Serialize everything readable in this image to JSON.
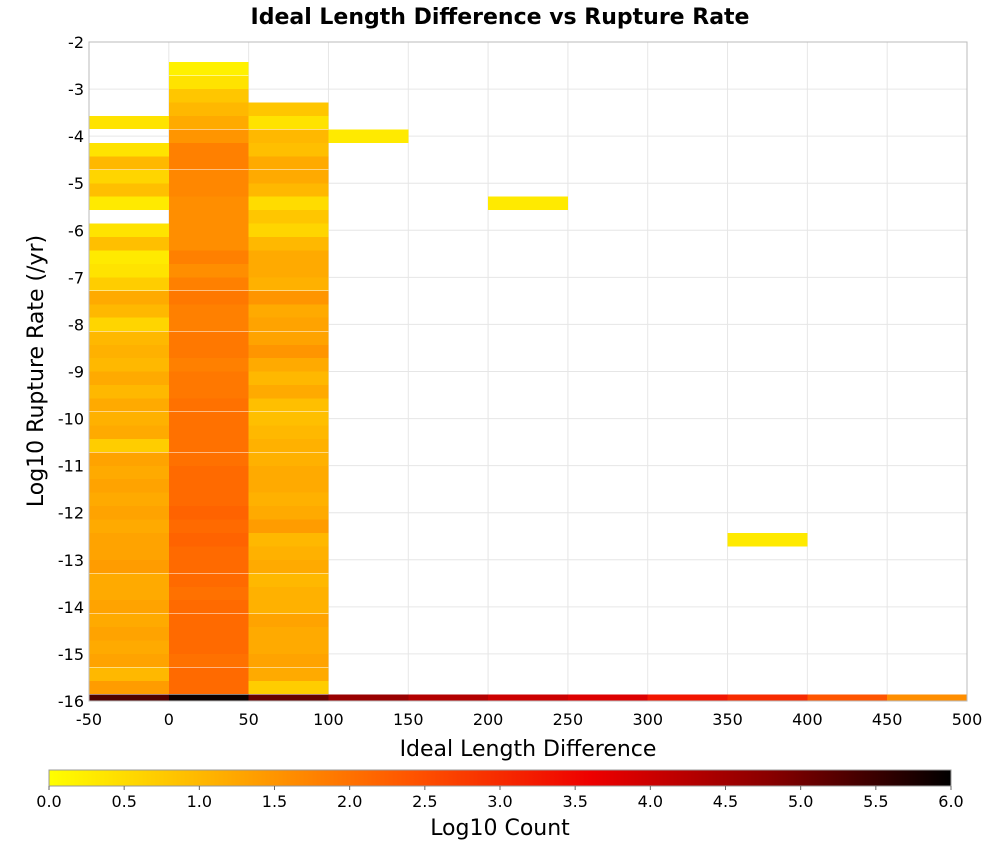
{
  "chart_data": {
    "type": "heatmap",
    "title": "Ideal Length Difference vs Rupture Rate",
    "xlabel": "Ideal Length Difference",
    "ylabel": "Log10 Rupture Rate (/yr)",
    "xlim": [
      -50,
      500
    ],
    "ylim": [
      -16,
      -2
    ],
    "x_ticks": [
      "-50",
      "0",
      "50",
      "100",
      "150",
      "200",
      "250",
      "300",
      "350",
      "400",
      "450",
      "500"
    ],
    "y_ticks": [
      "-2",
      "-3",
      "-4",
      "-5",
      "-6",
      "-7",
      "-8",
      "-9",
      "-10",
      "-11",
      "-12",
      "-13",
      "-14",
      "-15",
      "-16"
    ],
    "x_bin_width": 50,
    "y_bin_height": 0.286,
    "grid": true,
    "colorbar": {
      "label": "Log10 Count",
      "range": [
        0,
        6
      ],
      "ticks": [
        "0.0",
        "0.5",
        "1.0",
        "1.5",
        "2.0",
        "2.5",
        "3.0",
        "3.5",
        "4.0",
        "4.5",
        "5.0",
        "5.5",
        "6.0"
      ],
      "colors": [
        "#ffff00",
        "#ffaa00",
        "#ff5500",
        "#ee0000",
        "#880000",
        "#000000"
      ]
    },
    "columns": [
      {
        "x_start": -50,
        "cells": [
          [
            -16.0,
            5.3
          ],
          [
            -15.71,
            1.4
          ],
          [
            -15.43,
            1.0
          ],
          [
            -15.14,
            1.3
          ],
          [
            -14.86,
            1.2
          ],
          [
            -14.57,
            1.3
          ],
          [
            -14.29,
            1.2
          ],
          [
            -14.0,
            1.3
          ],
          [
            -13.71,
            1.2
          ],
          [
            -13.43,
            1.2
          ],
          [
            -13.14,
            1.4
          ],
          [
            -12.86,
            1.3
          ],
          [
            -12.57,
            1.3
          ],
          [
            -12.29,
            1.2
          ],
          [
            -12.0,
            1.3
          ],
          [
            -11.71,
            1.2
          ],
          [
            -11.43,
            1.3
          ],
          [
            -11.14,
            1.2
          ],
          [
            -10.86,
            1.3
          ],
          [
            -10.57,
            0.7
          ],
          [
            -10.29,
            1.2
          ],
          [
            -10.0,
            1.1
          ],
          [
            -9.71,
            1.2
          ],
          [
            -9.43,
            1.0
          ],
          [
            -9.14,
            1.2
          ],
          [
            -8.86,
            1.0
          ],
          [
            -8.57,
            1.1
          ],
          [
            -8.29,
            1.0
          ],
          [
            -8.0,
            0.6
          ],
          [
            -7.71,
            1.0
          ],
          [
            -7.43,
            1.2
          ],
          [
            -7.14,
            0.7
          ],
          [
            -6.86,
            0.4
          ],
          [
            -6.57,
            0.3
          ],
          [
            -6.29,
            0.9
          ],
          [
            -6.0,
            0.4
          ],
          [
            -5.43,
            0.3
          ],
          [
            -5.14,
            0.9
          ],
          [
            -4.86,
            0.6
          ],
          [
            -4.57,
            1.0
          ],
          [
            -4.29,
            0.4
          ],
          [
            -3.71,
            0.4
          ]
        ]
      },
      {
        "x_start": 0,
        "cells": [
          [
            -16.0,
            5.9
          ],
          [
            -15.71,
            2.1
          ],
          [
            -15.43,
            2.1
          ],
          [
            -15.14,
            2.0
          ],
          [
            -14.86,
            2.1
          ],
          [
            -14.57,
            2.1
          ],
          [
            -14.29,
            2.1
          ],
          [
            -14.0,
            2.1
          ],
          [
            -13.71,
            2.0
          ],
          [
            -13.43,
            2.1
          ],
          [
            -13.14,
            2.1
          ],
          [
            -12.86,
            2.1
          ],
          [
            -12.57,
            2.2
          ],
          [
            -12.29,
            2.1
          ],
          [
            -12.0,
            2.2
          ],
          [
            -11.71,
            2.1
          ],
          [
            -11.43,
            2.1
          ],
          [
            -11.14,
            2.1
          ],
          [
            -10.86,
            2.0
          ],
          [
            -10.57,
            2.0
          ],
          [
            -10.29,
            2.0
          ],
          [
            -10.0,
            2.0
          ],
          [
            -9.71,
            2.0
          ],
          [
            -9.43,
            1.9
          ],
          [
            -9.14,
            1.9
          ],
          [
            -8.86,
            1.8
          ],
          [
            -8.57,
            1.9
          ],
          [
            -8.29,
            1.9
          ],
          [
            -8.0,
            1.8
          ],
          [
            -7.71,
            1.8
          ],
          [
            -7.43,
            1.9
          ],
          [
            -7.14,
            1.8
          ],
          [
            -6.86,
            1.6
          ],
          [
            -6.57,
            1.8
          ],
          [
            -6.29,
            1.6
          ],
          [
            -6.0,
            1.6
          ],
          [
            -5.71,
            1.6
          ],
          [
            -5.43,
            1.6
          ],
          [
            -5.14,
            1.7
          ],
          [
            -4.86,
            1.7
          ],
          [
            -4.57,
            1.8
          ],
          [
            -4.29,
            1.8
          ],
          [
            -4.0,
            1.5
          ],
          [
            -3.71,
            1.2
          ],
          [
            -3.43,
            1.0
          ],
          [
            -3.14,
            0.8
          ],
          [
            -2.86,
            0.4
          ],
          [
            -2.57,
            0.2
          ]
        ]
      },
      {
        "x_start": 50,
        "cells": [
          [
            -16.0,
            5.1
          ],
          [
            -15.71,
            0.7
          ],
          [
            -15.43,
            1.2
          ],
          [
            -15.14,
            1.3
          ],
          [
            -14.86,
            1.2
          ],
          [
            -14.57,
            1.2
          ],
          [
            -14.29,
            1.3
          ],
          [
            -14.0,
            1.1
          ],
          [
            -13.71,
            1.1
          ],
          [
            -13.43,
            1.0
          ],
          [
            -13.14,
            1.2
          ],
          [
            -12.86,
            1.1
          ],
          [
            -12.57,
            1.0
          ],
          [
            -12.29,
            1.4
          ],
          [
            -12.0,
            1.2
          ],
          [
            -11.71,
            1.1
          ],
          [
            -11.43,
            1.2
          ],
          [
            -11.14,
            1.2
          ],
          [
            -10.86,
            1.1
          ],
          [
            -10.57,
            1.1
          ],
          [
            -10.29,
            1.0
          ],
          [
            -10.0,
            0.9
          ],
          [
            -9.71,
            0.9
          ],
          [
            -9.43,
            1.2
          ],
          [
            -9.14,
            1.0
          ],
          [
            -8.86,
            1.2
          ],
          [
            -8.57,
            1.5
          ],
          [
            -8.29,
            1.3
          ],
          [
            -8.0,
            1.3
          ],
          [
            -7.71,
            1.2
          ],
          [
            -7.43,
            1.5
          ],
          [
            -7.14,
            1.1
          ],
          [
            -6.86,
            1.2
          ],
          [
            -6.57,
            1.2
          ],
          [
            -6.29,
            1.0
          ],
          [
            -6.0,
            0.6
          ],
          [
            -5.71,
            0.8
          ],
          [
            -5.43,
            0.5
          ],
          [
            -5.14,
            1.0
          ],
          [
            -4.86,
            1.2
          ],
          [
            -4.57,
            1.2
          ],
          [
            -4.29,
            0.9
          ],
          [
            -4.0,
            1.0
          ],
          [
            -3.71,
            0.4
          ],
          [
            -3.43,
            0.8
          ]
        ]
      },
      {
        "x_start": 100,
        "cells": [
          [
            -16.0,
            4.6
          ],
          [
            -4.0,
            0.3
          ]
        ]
      },
      {
        "x_start": 150,
        "cells": [
          [
            -16.0,
            4.3
          ]
        ]
      },
      {
        "x_start": 200,
        "cells": [
          [
            -16.0,
            4.0
          ],
          [
            -5.43,
            0.3
          ]
        ]
      },
      {
        "x_start": 250,
        "cells": [
          [
            -16.0,
            3.8
          ]
        ]
      },
      {
        "x_start": 300,
        "cells": [
          [
            -16.0,
            3.3
          ]
        ]
      },
      {
        "x_start": 350,
        "cells": [
          [
            -16.0,
            3.0
          ],
          [
            -12.57,
            0.3
          ]
        ]
      },
      {
        "x_start": 400,
        "cells": [
          [
            -16.0,
            2.4
          ]
        ]
      },
      {
        "x_start": 450,
        "cells": [
          [
            -16.0,
            1.6
          ]
        ]
      }
    ]
  }
}
